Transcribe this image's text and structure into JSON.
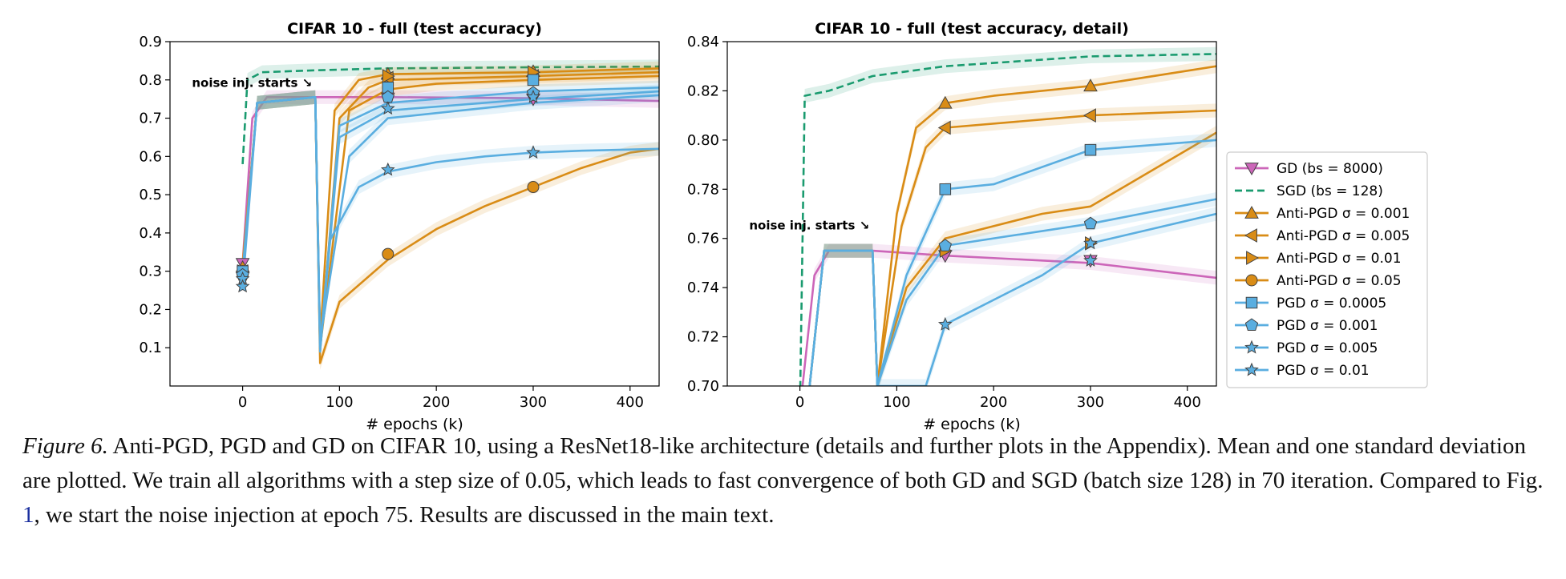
{
  "caption": {
    "label": "Figure 6.",
    "part1": " Anti-PGD, PGD and GD on CIFAR 10, using a ResNet18-like architecture (details and further plots in the Appendix). Mean and one standard deviation are plotted. We train all algorithms with a step size of 0.05, which leads to fast convergence of both GD and SGD (batch size 128) in 70 iteration. Compared to Fig. ",
    "ref": "1",
    "part2": ", we start the noise injection at epoch 75. Results are discussed in the main text."
  },
  "legend": [
    {
      "label": "GD (bs = 8000)",
      "color": "#cc66b9",
      "marker": "triangle-down",
      "dashed": false
    },
    {
      "label": "SGD (bs = 128)",
      "color": "#1a9b6f",
      "marker": "none",
      "dashed": true
    },
    {
      "label": "Anti-PGD σ = 0.001",
      "color": "#d98c16",
      "marker": "triangle-up",
      "dashed": false
    },
    {
      "label": "Anti-PGD σ = 0.005",
      "color": "#d98c16",
      "marker": "triangle-left",
      "dashed": false
    },
    {
      "label": "Anti-PGD σ = 0.01",
      "color": "#d98c16",
      "marker": "triangle-right",
      "dashed": false
    },
    {
      "label": "Anti-PGD σ = 0.05",
      "color": "#d98c16",
      "marker": "circle",
      "dashed": false
    },
    {
      "label": "PGD σ = 0.0005",
      "color": "#5aaee0",
      "marker": "square",
      "dashed": false
    },
    {
      "label": "PGD σ = 0.001",
      "color": "#5aaee0",
      "marker": "pentagon",
      "dashed": false
    },
    {
      "label": "PGD σ = 0.005",
      "color": "#5aaee0",
      "marker": "star",
      "dashed": false
    },
    {
      "label": "PGD σ = 0.01",
      "color": "#5aaee0",
      "marker": "star",
      "dashed": false
    }
  ],
  "chart_data": [
    {
      "type": "line",
      "title": "CIFAR 10 - full (test accuracy)",
      "xlabel": "# epochs (k)",
      "ylabel": "",
      "xlim": [
        -75,
        430
      ],
      "ylim": [
        0.0,
        0.9
      ],
      "xticks": [
        0,
        100,
        200,
        300,
        400
      ],
      "yticks": [
        0.1,
        0.2,
        0.3,
        0.4,
        0.5,
        0.6,
        0.7,
        0.8,
        0.9
      ],
      "annotation": {
        "text": "noise inj. starts ↘",
        "x": 75,
        "y": 0.79
      },
      "series": [
        {
          "name": "GD (bs = 8000)",
          "points": [
            [
              0,
              0.32
            ],
            [
              10,
              0.7
            ],
            [
              25,
              0.755
            ],
            [
              75,
              0.755
            ],
            [
              150,
              0.755
            ],
            [
              300,
              0.752
            ],
            [
              430,
              0.745
            ]
          ],
          "markers": [
            [
              0,
              0.32
            ],
            [
              150,
              0.752
            ],
            [
              300,
              0.75
            ]
          ]
        },
        {
          "name": "SGD (bs = 128)",
          "points": [
            [
              0,
              0.58
            ],
            [
              5,
              0.8
            ],
            [
              20,
              0.82
            ],
            [
              75,
              0.825
            ],
            [
              150,
              0.83
            ],
            [
              300,
              0.833
            ],
            [
              430,
              0.835
            ]
          ],
          "markers": []
        },
        {
          "name": "Anti-PGD σ = 0.001",
          "points": [
            [
              0,
              0.31
            ],
            [
              15,
              0.74
            ],
            [
              75,
              0.755
            ],
            [
              80,
              0.12
            ],
            [
              95,
              0.72
            ],
            [
              120,
              0.8
            ],
            [
              150,
              0.815
            ],
            [
              300,
              0.82
            ],
            [
              430,
              0.83
            ]
          ],
          "markers": [
            [
              0,
              0.31
            ],
            [
              150,
              0.815
            ],
            [
              300,
              0.822
            ]
          ]
        },
        {
          "name": "Anti-PGD σ = 0.005",
          "points": [
            [
              0,
              0.3
            ],
            [
              15,
              0.74
            ],
            [
              75,
              0.755
            ],
            [
              80,
              0.09
            ],
            [
              100,
              0.7
            ],
            [
              130,
              0.78
            ],
            [
              150,
              0.8
            ],
            [
              300,
              0.81
            ],
            [
              430,
              0.82
            ]
          ],
          "markers": [
            [
              0,
              0.3
            ],
            [
              150,
              0.805
            ],
            [
              300,
              0.81
            ]
          ]
        },
        {
          "name": "Anti-PGD σ = 0.01",
          "points": [
            [
              0,
              0.32
            ],
            [
              15,
              0.74
            ],
            [
              75,
              0.755
            ],
            [
              80,
              0.1
            ],
            [
              110,
              0.72
            ],
            [
              150,
              0.775
            ],
            [
              200,
              0.79
            ],
            [
              300,
              0.8
            ],
            [
              430,
              0.81
            ]
          ],
          "markers": [
            [
              0,
              0.3
            ],
            [
              150,
              0.81
            ],
            [
              300,
              0.82
            ]
          ]
        },
        {
          "name": "Anti-PGD σ = 0.05",
          "points": [
            [
              0,
              0.3
            ],
            [
              15,
              0.74
            ],
            [
              75,
              0.755
            ],
            [
              80,
              0.06
            ],
            [
              100,
              0.22
            ],
            [
              150,
              0.33
            ],
            [
              200,
              0.41
            ],
            [
              250,
              0.47
            ],
            [
              300,
              0.52
            ],
            [
              350,
              0.57
            ],
            [
              400,
              0.61
            ],
            [
              430,
              0.62
            ]
          ],
          "markers": [
            [
              0,
              0.3
            ],
            [
              150,
              0.345
            ],
            [
              300,
              0.52
            ]
          ]
        },
        {
          "name": "PGD σ = 0.0005",
          "points": [
            [
              0,
              0.3
            ],
            [
              15,
              0.74
            ],
            [
              75,
              0.755
            ],
            [
              80,
              0.1
            ],
            [
              100,
              0.68
            ],
            [
              150,
              0.74
            ],
            [
              250,
              0.76
            ],
            [
              300,
              0.77
            ],
            [
              430,
              0.78
            ]
          ],
          "markers": [
            [
              0,
              0.3
            ],
            [
              150,
              0.78
            ],
            [
              300,
              0.8
            ]
          ]
        },
        {
          "name": "PGD σ = 0.001",
          "points": [
            [
              0,
              0.29
            ],
            [
              15,
              0.74
            ],
            [
              75,
              0.755
            ],
            [
              80,
              0.09
            ],
            [
              100,
              0.65
            ],
            [
              150,
              0.72
            ],
            [
              300,
              0.75
            ],
            [
              430,
              0.77
            ]
          ],
          "markers": [
            [
              0,
              0.29
            ],
            [
              150,
              0.755
            ],
            [
              300,
              0.766
            ]
          ]
        },
        {
          "name": "PGD σ = 0.005",
          "points": [
            [
              0,
              0.28
            ],
            [
              15,
              0.74
            ],
            [
              75,
              0.755
            ],
            [
              80,
              0.12
            ],
            [
              110,
              0.6
            ],
            [
              150,
              0.7
            ],
            [
              300,
              0.74
            ],
            [
              430,
              0.76
            ]
          ],
          "markers": [
            [
              0,
              0.28
            ],
            [
              150,
              0.725
            ],
            [
              300,
              0.755
            ]
          ]
        },
        {
          "name": "PGD σ = 0.01",
          "points": [
            [
              0,
              0.26
            ],
            [
              15,
              0.74
            ],
            [
              75,
              0.755
            ],
            [
              80,
              0.1
            ],
            [
              90,
              0.38
            ],
            [
              120,
              0.52
            ],
            [
              150,
              0.56
            ],
            [
              200,
              0.585
            ],
            [
              250,
              0.6
            ],
            [
              300,
              0.61
            ],
            [
              350,
              0.615
            ],
            [
              430,
              0.62
            ]
          ],
          "markers": [
            [
              0,
              0.26
            ],
            [
              150,
              0.565
            ],
            [
              300,
              0.61
            ]
          ]
        }
      ]
    },
    {
      "type": "line",
      "title": "CIFAR 10 - full (test accuracy, detail)",
      "xlabel": "# epochs (k)",
      "ylabel": "",
      "xlim": [
        -75,
        430
      ],
      "ylim": [
        0.7,
        0.84
      ],
      "xticks": [
        0,
        100,
        200,
        300,
        400
      ],
      "yticks": [
        0.7,
        0.72,
        0.74,
        0.76,
        0.78,
        0.8,
        0.82,
        0.84
      ],
      "annotation": {
        "text": "noise inj. starts ↘",
        "x": 75,
        "y": 0.765
      },
      "series": [
        {
          "name": "GD (bs = 8000)",
          "points": [
            [
              0,
              0.69
            ],
            [
              15,
              0.745
            ],
            [
              30,
              0.755
            ],
            [
              75,
              0.755
            ],
            [
              150,
              0.753
            ],
            [
              300,
              0.75
            ],
            [
              430,
              0.744
            ]
          ],
          "markers": [
            [
              150,
              0.753
            ],
            [
              300,
              0.751
            ]
          ]
        },
        {
          "name": "SGD (bs = 128)",
          "points": [
            [
              0,
              0.69
            ],
            [
              5,
              0.818
            ],
            [
              30,
              0.82
            ],
            [
              75,
              0.826
            ],
            [
              150,
              0.83
            ],
            [
              300,
              0.834
            ],
            [
              430,
              0.835
            ]
          ],
          "markers": []
        },
        {
          "name": "Anti-PGD σ = 0.001",
          "points": [
            [
              10,
              0.7
            ],
            [
              25,
              0.755
            ],
            [
              75,
              0.755
            ],
            [
              80,
              0.7
            ],
            [
              100,
              0.77
            ],
            [
              120,
              0.805
            ],
            [
              150,
              0.815
            ],
            [
              200,
              0.818
            ],
            [
              300,
              0.822
            ],
            [
              430,
              0.83
            ]
          ],
          "markers": [
            [
              150,
              0.815
            ],
            [
              300,
              0.822
            ]
          ]
        },
        {
          "name": "Anti-PGD σ = 0.005",
          "points": [
            [
              10,
              0.7
            ],
            [
              25,
              0.755
            ],
            [
              75,
              0.755
            ],
            [
              80,
              0.7
            ],
            [
              105,
              0.765
            ],
            [
              130,
              0.797
            ],
            [
              150,
              0.805
            ],
            [
              300,
              0.81
            ],
            [
              430,
              0.812
            ]
          ],
          "markers": [
            [
              150,
              0.805
            ],
            [
              300,
              0.81
            ]
          ]
        },
        {
          "name": "Anti-PGD σ = 0.01",
          "points": [
            [
              10,
              0.7
            ],
            [
              25,
              0.755
            ],
            [
              75,
              0.755
            ],
            [
              80,
              0.7
            ],
            [
              110,
              0.74
            ],
            [
              150,
              0.76
            ],
            [
              250,
              0.77
            ],
            [
              300,
              0.773
            ],
            [
              430,
              0.803
            ]
          ],
          "markers": [
            [
              150,
              0.755
            ],
            [
              300,
              0.758
            ]
          ]
        },
        {
          "name": "PGD σ = 0.0005",
          "points": [
            [
              10,
              0.7
            ],
            [
              25,
              0.755
            ],
            [
              75,
              0.755
            ],
            [
              80,
              0.7
            ],
            [
              110,
              0.745
            ],
            [
              150,
              0.78
            ],
            [
              200,
              0.782
            ],
            [
              300,
              0.796
            ],
            [
              430,
              0.8
            ]
          ],
          "markers": [
            [
              150,
              0.78
            ],
            [
              300,
              0.796
            ]
          ]
        },
        {
          "name": "PGD σ = 0.001",
          "points": [
            [
              10,
              0.7
            ],
            [
              25,
              0.755
            ],
            [
              75,
              0.755
            ],
            [
              80,
              0.7
            ],
            [
              110,
              0.735
            ],
            [
              150,
              0.757
            ],
            [
              300,
              0.766
            ],
            [
              430,
              0.776
            ]
          ],
          "markers": [
            [
              150,
              0.757
            ],
            [
              300,
              0.766
            ]
          ]
        },
        {
          "name": "PGD σ = 0.005",
          "points": [
            [
              10,
              0.7
            ],
            [
              25,
              0.755
            ],
            [
              75,
              0.755
            ],
            [
              80,
              0.7
            ],
            [
              130,
              0.7
            ],
            [
              150,
              0.725
            ],
            [
              250,
              0.745
            ],
            [
              300,
              0.758
            ],
            [
              430,
              0.77
            ]
          ],
          "markers": [
            [
              150,
              0.725
            ],
            [
              300,
              0.758
            ]
          ]
        },
        {
          "name": "PGD σ = 0.01",
          "points": [
            [
              300,
              0.751
            ]
          ],
          "markers": [
            [
              300,
              0.751
            ]
          ]
        }
      ]
    }
  ]
}
